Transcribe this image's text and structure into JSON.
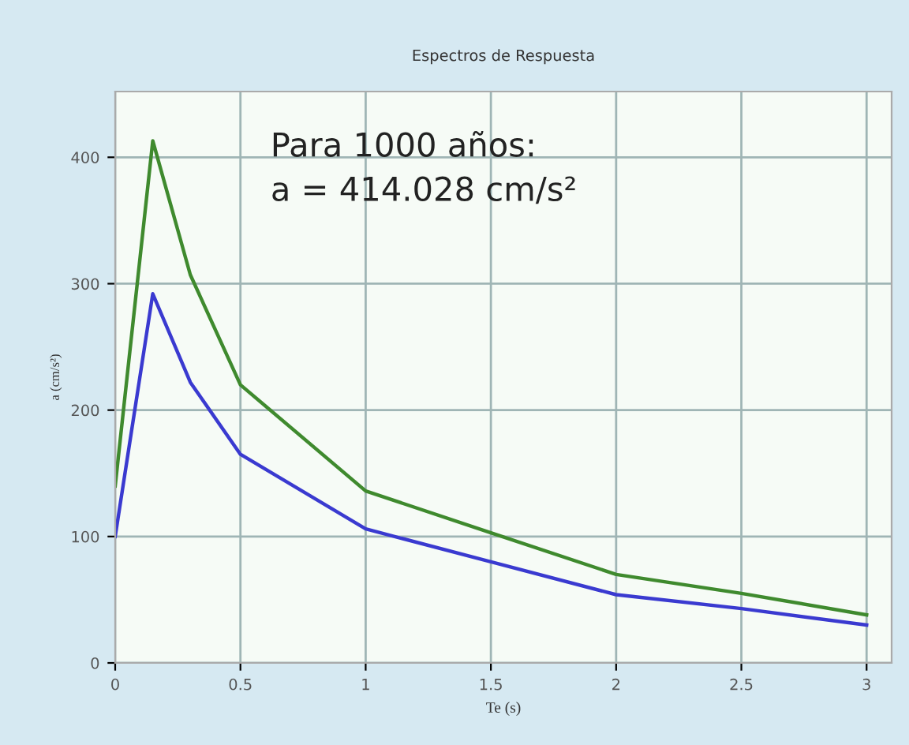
{
  "chart_data": {
    "type": "line",
    "title": "Espectros de Respuesta",
    "xlabel": "Te (s)",
    "ylabel": "a (cm/s²)",
    "annotations": [
      "Para 1000 años:\na = 414.028 cm/s²"
    ],
    "x": [
      0,
      0.15,
      0.3,
      0.5,
      1,
      1.5,
      2,
      2.5,
      3
    ],
    "series": [
      {
        "color": "#3f8a2e",
        "values": [
          140,
          413,
          307,
          220,
          136,
          103,
          70,
          55,
          38
        ]
      },
      {
        "color": "#3a3ad0",
        "values": [
          100,
          292,
          222,
          165,
          106,
          80,
          54,
          43,
          30
        ]
      }
    ],
    "xlim": [
      0,
      3.1
    ],
    "ylim": [
      0,
      452
    ],
    "xticks": [
      0,
      0.5,
      1,
      1.5,
      2,
      2.5,
      3
    ],
    "yticks": [
      0,
      100,
      200,
      300,
      400
    ],
    "grid": true,
    "marker": "none",
    "line_style": "solid"
  }
}
